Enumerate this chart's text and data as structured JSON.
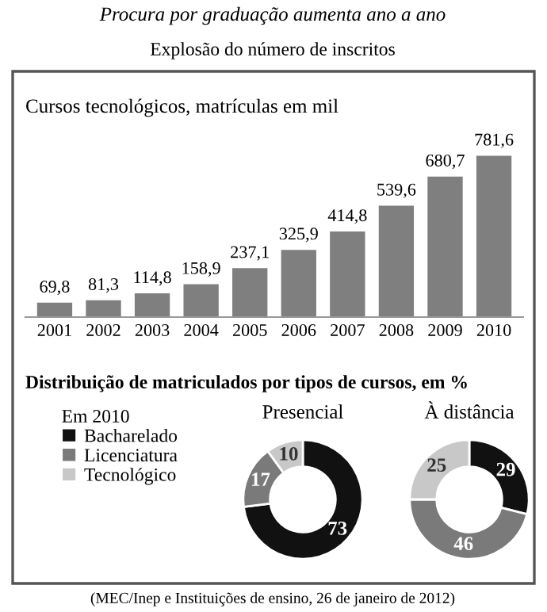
{
  "chart_data": [
    {
      "type": "bar",
      "title": "Procura por graduação aumenta ano a ano",
      "subtitle": "Explosão do número de inscritos",
      "annotations": [
        "Cursos tecnológicos, matrículas em mil"
      ],
      "x": [
        2001,
        2002,
        2003,
        2004,
        2005,
        2006,
        2007,
        2008,
        2009,
        2010
      ],
      "xlim": [
        2000.4,
        2010.6
      ],
      "xticks": [
        2001,
        2002,
        2003,
        2004,
        2005,
        2006,
        2007,
        2008,
        2009,
        2010
      ],
      "values": [
        69.8,
        81.3,
        114.8,
        158.9,
        237.1,
        325.9,
        414.8,
        539.6,
        680.7,
        781.6
      ],
      "color": "#7f7f7f",
      "value_labels": [
        "69,8",
        "81,3",
        "114,8",
        "158,9",
        "237,1",
        "325,9",
        "414,8",
        "539,6",
        "680,7",
        "781,6"
      ],
      "grid": false
    },
    {
      "type": "donut",
      "title": "Presencial",
      "annotations": [
        "Distribuição de matriculados por tipos de cursos, em %"
      ],
      "legend_title": "Em 2010",
      "legend": "left",
      "categories": [
        "Bacharelado",
        "Licenciatura",
        "Tecnológico"
      ],
      "values": [
        73,
        17,
        10
      ],
      "colors": [
        "#111111",
        "#7a7a7a",
        "#c8c8c8"
      ],
      "data_labels": true
    },
    {
      "type": "donut",
      "title": "À distância",
      "annotations": [
        "(MEC/Inep e Instituições de ensino, 26 de janeiro de 2012)"
      ],
      "values": [
        29,
        46,
        25
      ],
      "colors": [
        "#111111",
        "#7a7a7a",
        "#c8c8c8"
      ],
      "data_labels": true
    }
  ]
}
